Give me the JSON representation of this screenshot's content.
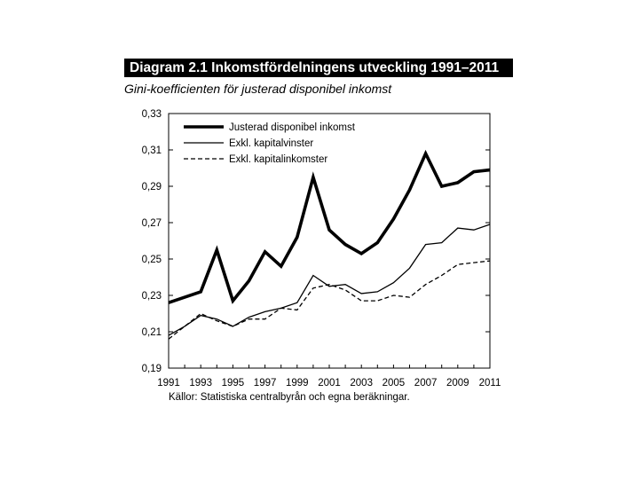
{
  "chart_data": {
    "type": "line",
    "title": "Diagram 2.1 Inkomstfördelningens utveckling 1991–2011",
    "subtitle": "Gini-koefficienten för justerad disponibel inkomst",
    "xlabel": "",
    "ylabel": "",
    "x": [
      1991,
      1992,
      1993,
      1994,
      1995,
      1996,
      1997,
      1998,
      1999,
      2000,
      2001,
      2002,
      2003,
      2004,
      2005,
      2006,
      2007,
      2008,
      2009,
      2010,
      2011
    ],
    "xtick_labels": [
      "1991",
      "1993",
      "1995",
      "1997",
      "1999",
      "2001",
      "2003",
      "2005",
      "2007",
      "2009",
      "2011"
    ],
    "ytick_labels": [
      "0,19",
      "0,21",
      "0,23",
      "0,25",
      "0,27",
      "0,29",
      "0,31",
      "0,33"
    ],
    "ylim": [
      0.19,
      0.33
    ],
    "legend_position": "top-left",
    "series": [
      {
        "name": "Justerad disponibel inkomst",
        "style": "thick",
        "values": [
          0.226,
          0.229,
          0.232,
          0.255,
          0.227,
          0.238,
          0.254,
          0.246,
          0.262,
          0.295,
          0.266,
          0.258,
          0.253,
          0.259,
          0.272,
          0.288,
          0.308,
          0.29,
          0.292,
          0.298,
          0.299
        ]
      },
      {
        "name": "Exkl. kapitalvinster",
        "style": "thin",
        "values": [
          0.208,
          0.213,
          0.219,
          0.217,
          0.213,
          0.218,
          0.221,
          0.223,
          0.226,
          0.241,
          0.235,
          0.236,
          0.231,
          0.232,
          0.237,
          0.245,
          0.258,
          0.259,
          0.267,
          0.266,
          0.269
        ]
      },
      {
        "name": "Exkl. kapitalinkomster",
        "style": "dashed",
        "values": [
          0.206,
          0.213,
          0.22,
          0.216,
          0.213,
          0.217,
          0.217,
          0.223,
          0.222,
          0.234,
          0.236,
          0.233,
          0.227,
          0.227,
          0.23,
          0.229,
          0.236,
          0.241,
          0.247,
          0.248,
          0.249
        ]
      }
    ],
    "source": "Källor: Statistiska centralbyrån och egna beräkningar."
  }
}
